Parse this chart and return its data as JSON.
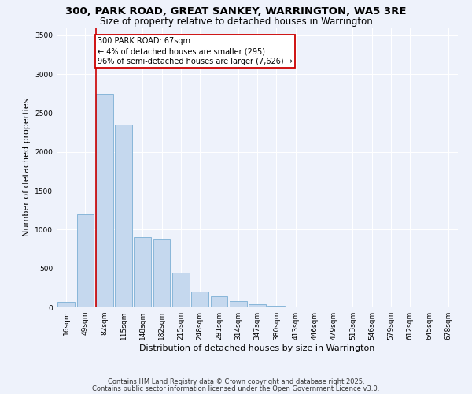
{
  "title_line1": "300, PARK ROAD, GREAT SANKEY, WARRINGTON, WA5 3RE",
  "title_line2": "Size of property relative to detached houses in Warrington",
  "xlabel": "Distribution of detached houses by size in Warrington",
  "ylabel": "Number of detached properties",
  "footnote1": "Contains HM Land Registry data © Crown copyright and database right 2025.",
  "footnote2": "Contains public sector information licensed under the Open Government Licence v3.0.",
  "bar_labels": [
    "16sqm",
    "49sqm",
    "82sqm",
    "115sqm",
    "148sqm",
    "182sqm",
    "215sqm",
    "248sqm",
    "281sqm",
    "314sqm",
    "347sqm",
    "380sqm",
    "413sqm",
    "446sqm",
    "479sqm",
    "513sqm",
    "546sqm",
    "579sqm",
    "612sqm",
    "645sqm",
    "678sqm"
  ],
  "bar_values": [
    75,
    1200,
    2750,
    2350,
    900,
    880,
    450,
    200,
    140,
    80,
    40,
    20,
    10,
    8,
    5,
    3,
    2,
    1,
    1,
    0,
    0
  ],
  "bar_color": "#c5d8ee",
  "bar_edgecolor": "#7bafd4",
  "ylim": [
    0,
    3600
  ],
  "yticks": [
    0,
    500,
    1000,
    1500,
    2000,
    2500,
    3000,
    3500
  ],
  "property_line_x": 1.55,
  "annotation_text": "300 PARK ROAD: 67sqm\n← 4% of detached houses are smaller (295)\n96% of semi-detached houses are larger (7,626) →",
  "annotation_box_color": "#ffffff",
  "annotation_box_edge": "#cc0000",
  "red_line_color": "#cc0000",
  "background_color": "#eef2fb",
  "grid_color": "#ffffff",
  "title_fontsize": 9.5,
  "subtitle_fontsize": 8.5,
  "ylabel_fontsize": 8,
  "xlabel_fontsize": 8,
  "tick_fontsize": 6.5,
  "annot_fontsize": 7,
  "footnote_fontsize": 6
}
